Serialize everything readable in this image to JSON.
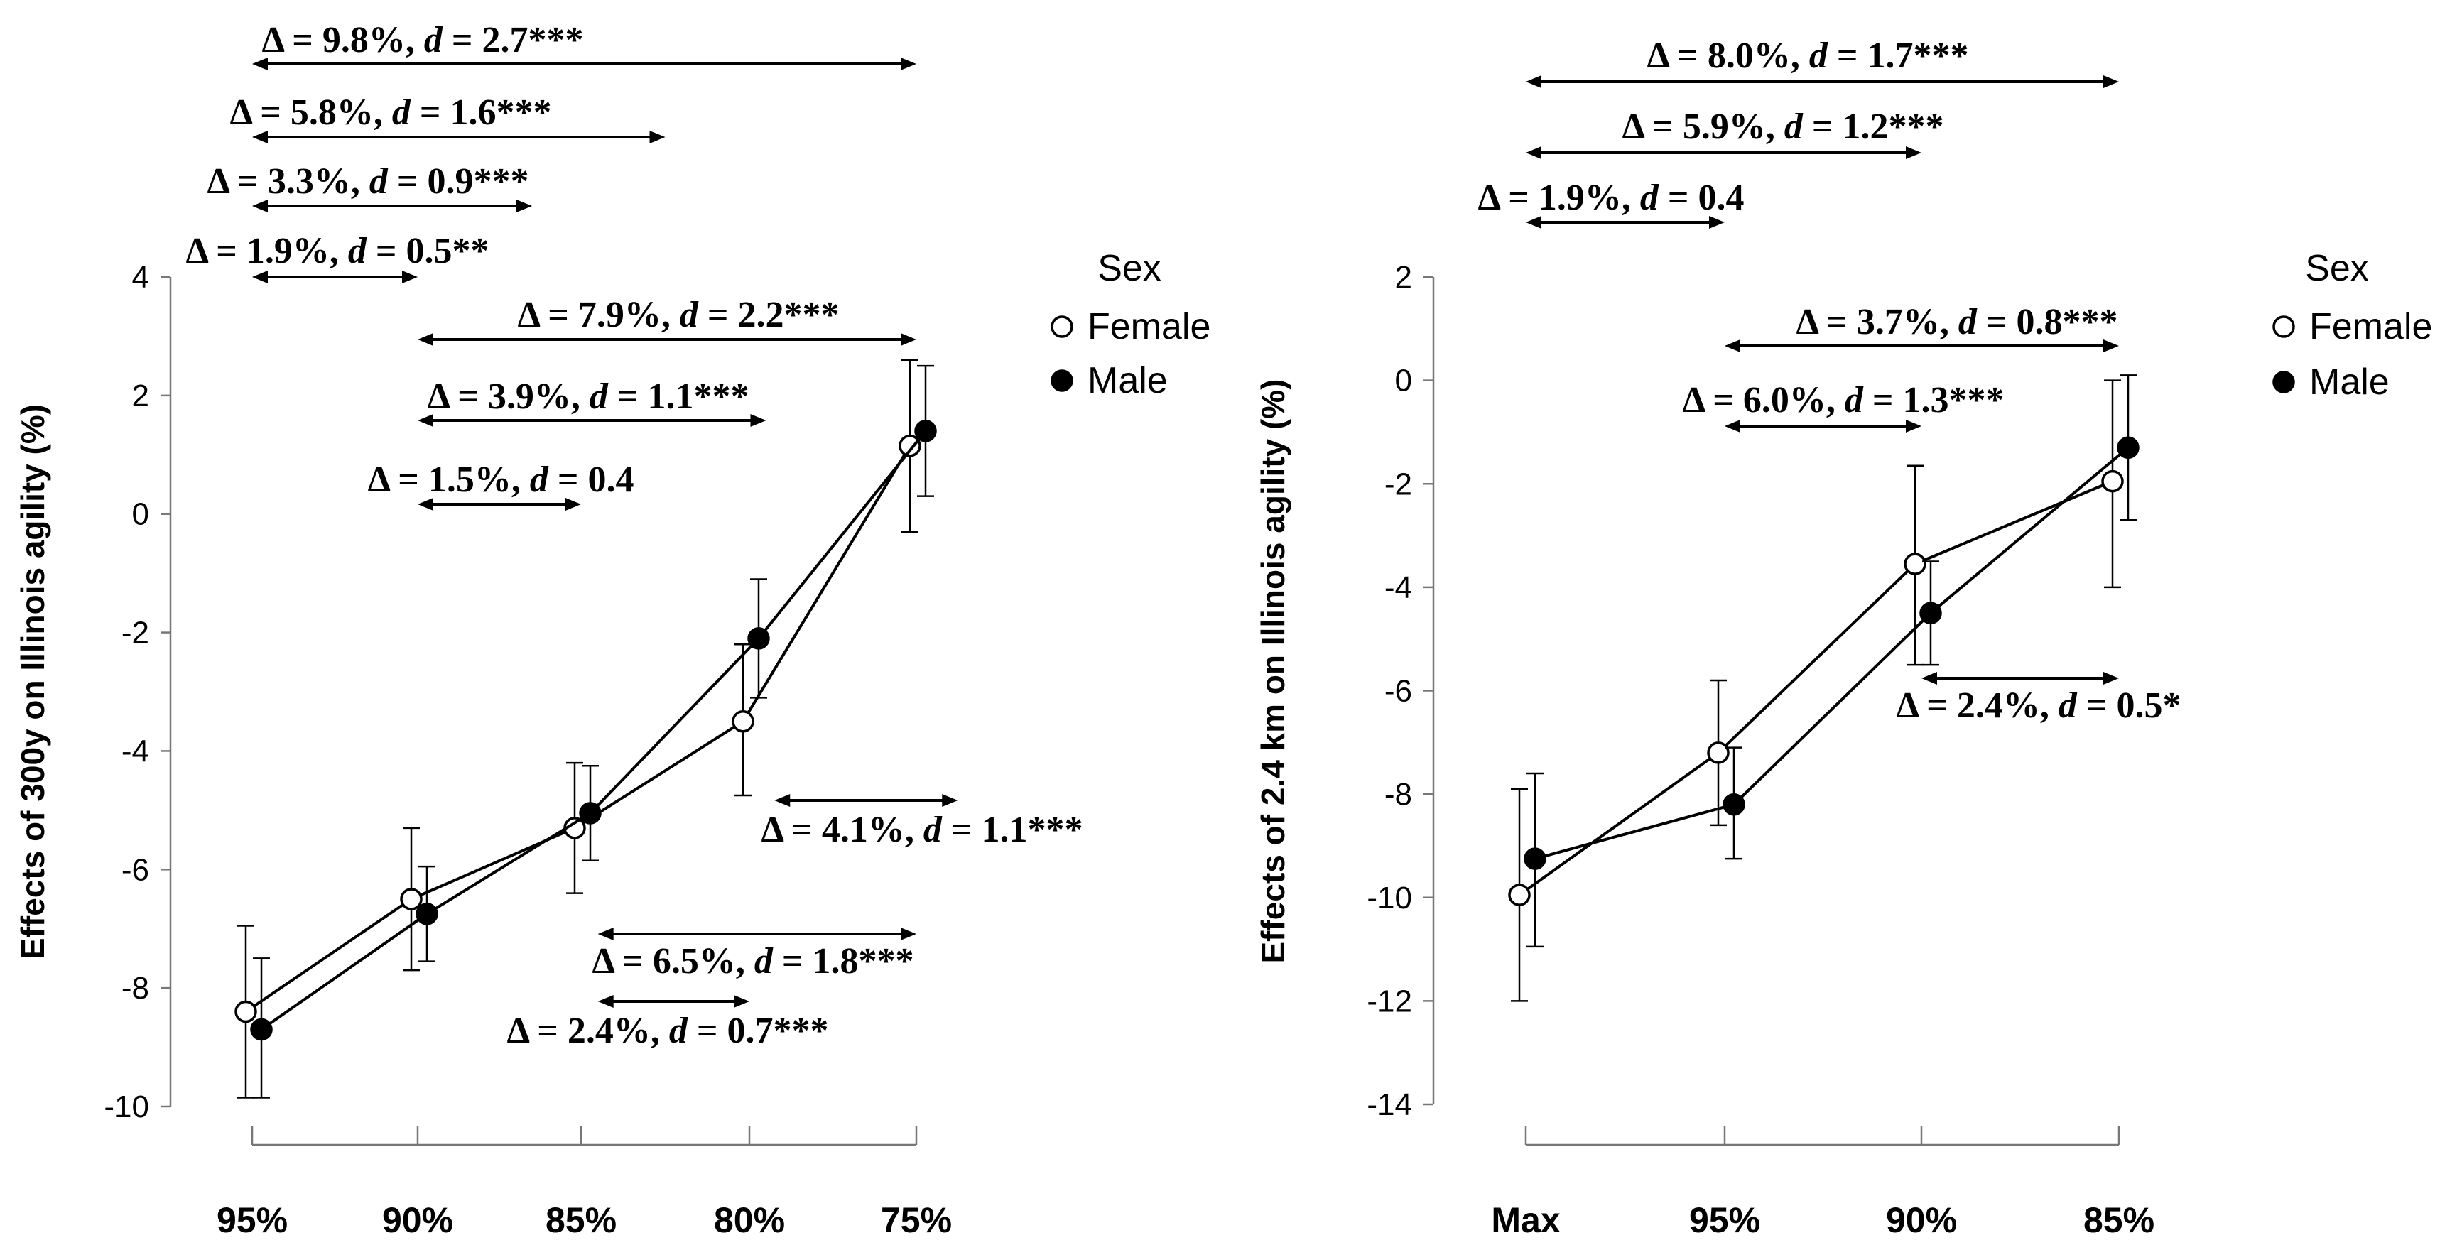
{
  "chart_data": [
    {
      "type": "line",
      "ylabel": "Effects of 300y on Illinois agility (%)",
      "xlabel": "",
      "categories": [
        "95%",
        "90%",
        "85%",
        "80%",
        "75%"
      ],
      "ylim": [
        -10,
        4
      ],
      "yticks": [
        "4",
        "2",
        "0",
        "-2",
        "-4",
        "-6",
        "-8",
        "-10"
      ],
      "legend": {
        "title": "Sex",
        "position": "top-right"
      },
      "series": [
        {
          "name": "Female",
          "marker": "open-circle",
          "values": [
            -8.4,
            -6.5,
            -5.3,
            -3.5,
            1.15
          ],
          "lower": [
            -9.85,
            -7.7,
            -6.4,
            -4.75,
            -0.3
          ],
          "upper": [
            -6.95,
            -5.3,
            -4.2,
            -2.2,
            2.6
          ]
        },
        {
          "name": "Male",
          "marker": "filled-circle",
          "values": [
            -8.7,
            -6.75,
            -5.05,
            -2.1,
            1.4
          ],
          "lower": [
            -9.85,
            -7.55,
            -5.85,
            -3.1,
            0.3
          ],
          "upper": [
            -7.5,
            -5.95,
            -4.25,
            -1.1,
            2.5
          ]
        }
      ],
      "annotations": [
        {
          "delta": "9.8%",
          "d": "2.7***",
          "from": 0,
          "to": 4
        },
        {
          "delta": "5.8%",
          "d": "1.6***",
          "from": 0,
          "to": 2.5
        },
        {
          "delta": "3.3%",
          "d": "0.9***",
          "from": 0,
          "to": 1.7
        },
        {
          "delta": "1.9%",
          "d": "0.5**",
          "from": 0,
          "to": 1
        },
        {
          "delta": "7.9%",
          "d": "2.2***",
          "from": 1,
          "to": 4
        },
        {
          "delta": "3.9%",
          "d": "1.1***",
          "from": 1,
          "to": 3.1
        },
        {
          "delta": "1.5%",
          "d": "0.4",
          "from": 1,
          "to": 2
        },
        {
          "delta": "4.1%",
          "d": "1.1***",
          "from": 3.15,
          "to": 4.25
        },
        {
          "delta": "6.5%",
          "d": "1.8***",
          "from": 2.1,
          "to": 4
        },
        {
          "delta": "2.4%",
          "d": "0.7***",
          "from": 2.1,
          "to": 3
        }
      ]
    },
    {
      "type": "line",
      "ylabel": "Effects of 2.4 km on Illinois agility (%)",
      "xlabel": "",
      "categories": [
        "Max",
        "95%",
        "90%",
        "85%"
      ],
      "ylim": [
        -14,
        2
      ],
      "yticks": [
        "2",
        "0",
        "-2",
        "-4",
        "-6",
        "-8",
        "-10",
        "-12",
        "-14"
      ],
      "legend": {
        "title": "Sex",
        "position": "top-right"
      },
      "series": [
        {
          "name": "Female",
          "marker": "open-circle",
          "values": [
            -9.95,
            -7.2,
            -3.55,
            -1.95
          ],
          "lower": [
            -12.0,
            -8.6,
            -5.5,
            -4.0
          ],
          "upper": [
            -7.9,
            -5.8,
            -1.65,
            0.0
          ]
        },
        {
          "name": "Male",
          "marker": "filled-circle",
          "values": [
            -9.25,
            -8.2,
            -4.5,
            -1.3
          ],
          "lower": [
            -10.95,
            -9.25,
            -5.5,
            -2.7
          ],
          "upper": [
            -7.6,
            -7.1,
            -3.5,
            0.1
          ]
        }
      ],
      "annotations": [
        {
          "delta": "8.0%",
          "d": "1.7***",
          "from": 0,
          "to": 3
        },
        {
          "delta": "5.9%",
          "d": "1.2***",
          "from": 0,
          "to": 2
        },
        {
          "delta": "1.9%",
          "d": "0.4",
          "from": 0,
          "to": 1
        },
        {
          "delta": "3.7%",
          "d": "0.8***",
          "from": 1,
          "to": 3
        },
        {
          "delta": "6.0%",
          "d": "1.3***",
          "from": 1,
          "to": 2
        },
        {
          "delta": "2.4%",
          "d": "0.5*",
          "from": 2,
          "to": 3
        }
      ]
    }
  ],
  "labels": {
    "delta_symbol": "Δ",
    "equals": " = ",
    "d_symbol": "d"
  }
}
